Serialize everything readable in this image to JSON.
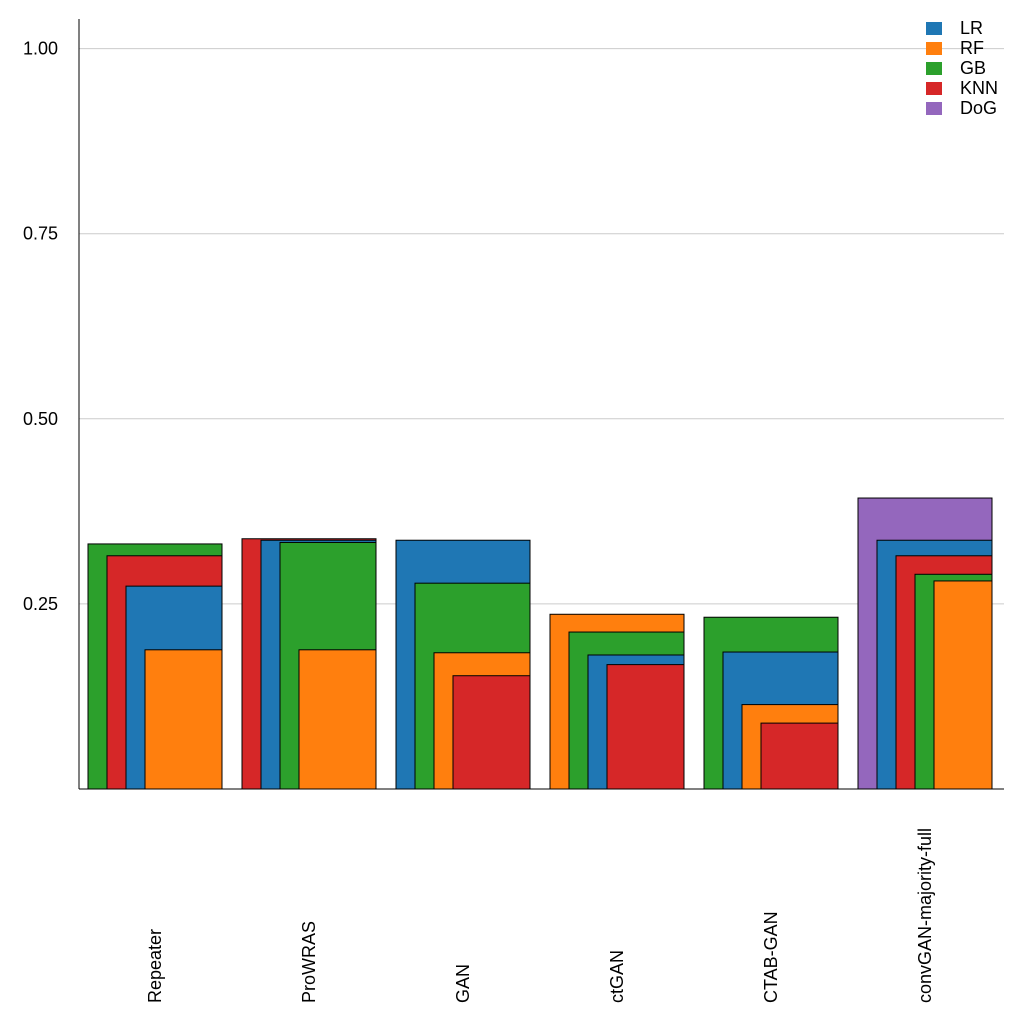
{
  "chart_data": {
    "type": "bar",
    "categories": [
      "Repeater",
      "ProWRAS",
      "GAN",
      "ctGAN",
      "CTAB-GAN",
      "convGAN-majority-full"
    ],
    "ylim": [
      0,
      1.04
    ],
    "yticks": [
      0.25,
      0.5,
      0.75,
      1.0
    ],
    "ytick_labels": [
      "0.25",
      "0.50",
      "0.75",
      "1.00"
    ],
    "grid": true,
    "legend_position": "top-right",
    "series": [
      {
        "name": "LR",
        "color": "#1f77b4",
        "values": [
          0.274,
          0.336,
          0.336,
          0.181,
          0.185,
          0.336
        ]
      },
      {
        "name": "RF",
        "color": "#ff7f0e",
        "values": [
          0.188,
          0.188,
          0.184,
          0.236,
          0.114,
          0.281
        ]
      },
      {
        "name": "GB",
        "color": "#2ca02c",
        "values": [
          0.331,
          0.333,
          0.278,
          0.212,
          0.232,
          0.29
        ]
      },
      {
        "name": "KNN",
        "color": "#d62728",
        "values": [
          0.315,
          0.338,
          0.153,
          0.168,
          0.089,
          0.315
        ]
      },
      {
        "name": "DoG",
        "color": "#9467bd",
        "values": [
          null,
          null,
          null,
          null,
          null,
          0.393
        ]
      }
    ]
  }
}
